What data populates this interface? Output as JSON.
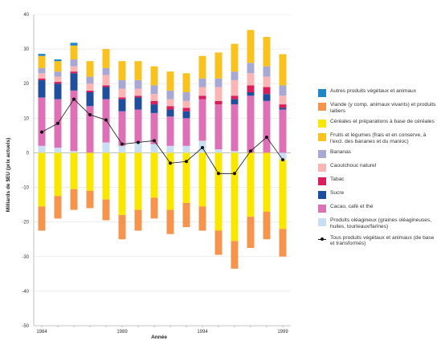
{
  "chart_data": {
    "type": "bar",
    "ylabel": "Milliards de $EU (prix actuels)",
    "xlabel": "Année",
    "ylim": [
      -50,
      40
    ],
    "yticks": [
      -50,
      -40,
      -30,
      -20,
      -10,
      0,
      10,
      20,
      30,
      40
    ],
    "categories": [
      "1984",
      "1985",
      "1986",
      "1987",
      "1988",
      "1989",
      "1990",
      "1991",
      "1992",
      "1993",
      "1994",
      "1995",
      "1996",
      "1997",
      "1998",
      "1999"
    ],
    "xtick_labels": [
      "1984",
      "",
      "",
      "",
      "",
      "1989",
      "",
      "",
      "",
      "",
      "1994",
      "",
      "",
      "",
      "",
      "1999"
    ],
    "grid": "horizontal",
    "legend_position": "right",
    "series": [
      {
        "name": "Autres produits végétaux et animaux",
        "color": "#1f86c8",
        "values": [
          0.6,
          0.5,
          0.8,
          0,
          0,
          0,
          0,
          0,
          0,
          0,
          0,
          0,
          0,
          0,
          0,
          0
        ]
      },
      {
        "name": "Viande (y comp. animaux vivants) et produits laitiers",
        "color": "#f5944c",
        "values": [
          -7,
          -6.5,
          -6,
          -5,
          -6,
          -7,
          -6,
          -6,
          -7,
          -7,
          -7,
          -7,
          -8,
          -9,
          -8,
          -8
        ]
      },
      {
        "name": "Céréales et préparations à base de céréales",
        "color": "#fae700",
        "values": [
          -15.5,
          -12.5,
          -10.5,
          -11,
          -13.5,
          -18,
          -16.5,
          -13,
          -16.5,
          -14.5,
          -15.5,
          -22.5,
          -25.5,
          -18.5,
          -17,
          -20
        ]
      },
      {
        "name": "Fruits et légumes (frais et en conserve, à l'excl. des bananes et du manioc)",
        "color": "#fac21e",
        "values": [
          3.5,
          3,
          4,
          4.5,
          5.5,
          5.5,
          5.5,
          5.5,
          5.5,
          5.5,
          6.5,
          7.5,
          8,
          9.5,
          8.5,
          9
        ]
      },
      {
        "name": "Bananas",
        "color": "#a8a8d4",
        "values": [
          1.5,
          1.5,
          2,
          2,
          2,
          2.5,
          2.5,
          2.5,
          2.5,
          2.5,
          2.5,
          2.5,
          2.5,
          3,
          3,
          3
        ]
      },
      {
        "name": "Caoutchouc naturel",
        "color": "#fbb5b5",
        "values": [
          1.5,
          1.5,
          1.5,
          2,
          3,
          2.5,
          2,
          2,
          2,
          2,
          2.5,
          4,
          4.5,
          3.5,
          3,
          2.5
        ]
      },
      {
        "name": "Tabac",
        "color": "#d81e5b",
        "values": [
          0.5,
          0.5,
          0.5,
          0.5,
          0.5,
          0.5,
          0.5,
          1,
          1,
          1,
          1,
          1,
          1,
          2,
          2,
          1
        ]
      },
      {
        "name": "Sucre",
        "color": "#1f4e9e",
        "values": [
          5,
          4.5,
          5,
          4,
          3.5,
          3.5,
          3.5,
          2.5,
          2,
          2,
          0,
          0,
          1.5,
          1,
          2,
          0.5
        ]
      },
      {
        "name": "Cacao, café et thé",
        "color": "#de70b5",
        "values": [
          14,
          14,
          17.5,
          13.5,
          12.5,
          10,
          9.5,
          9,
          8.5,
          8,
          12,
          13,
          13.5,
          16.5,
          15,
          12.5
        ]
      },
      {
        "name": "Produits oléagineux (graines oléagineuses, huiles, tourteaux/farines)",
        "color": "#c9def2",
        "values": [
          2,
          1.5,
          0.5,
          0,
          3,
          2,
          3,
          2.5,
          2,
          2,
          3.5,
          1,
          0.5,
          0,
          0,
          -2
        ]
      },
      {
        "name": "Tous produits végétaux et animaux (de base et transformés)",
        "color": "#111111",
        "type": "line",
        "values": [
          6,
          8.5,
          15.5,
          11,
          9.5,
          2.5,
          3,
          3.5,
          -3,
          -2.5,
          1.5,
          -6,
          -6,
          0.5,
          4.5,
          -2
        ]
      }
    ],
    "legend_labels": [
      "Autres produits végétaux et animaux",
      "Viande (y comp. animaux vivants) et produits laitiers",
      "Céréales et préparations à base de céréales",
      "Fruits et légumes (frais et en conserve, à l'excl. des bananes et du manioc)",
      "Bananas",
      "Caoutchouc naturel",
      "Tabac",
      "Sucre",
      "Cacao, café et thé",
      "Produits oléagineux (graines oléagineuses, huiles, tourteaux/farines)",
      "Tous produits végétaux et animaux (de base et transformés)"
    ]
  }
}
